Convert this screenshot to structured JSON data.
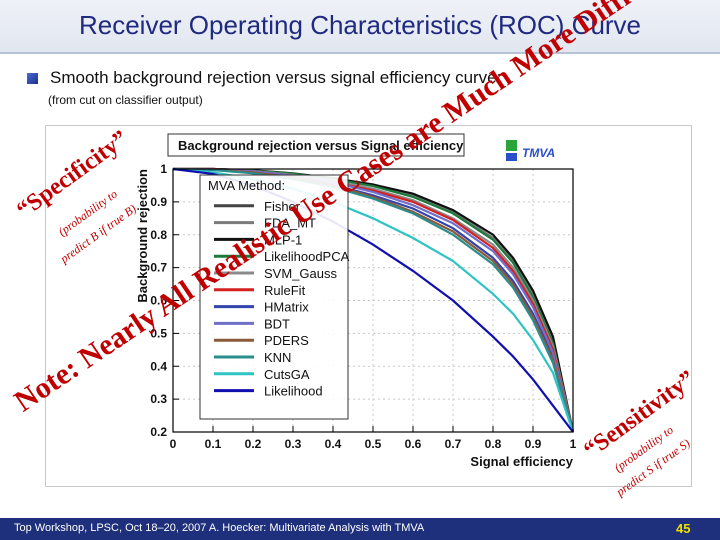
{
  "slide": {
    "title": "Receiver Operating Characteristics (ROC) Curve",
    "bullet": "Smooth background rejection versus signal efficiency curve:",
    "sub_note": "(from cut on classifier output)",
    "footer_text": "Top Workshop, LPSC, Oct 18–20, 2007 A. Hoecker: Multivariate Analysis with TMVA",
    "page_number": "45",
    "logo_text": "TMVA"
  },
  "annotations": {
    "diagonal": "Note: Nearly All Realistic Use Cases are Much More Difficult Than This One",
    "specificity_label": "“Specificity”",
    "specificity_sub1": "(probability to",
    "specificity_sub2": "predict B if true B)",
    "sensitivity_label": "“Sensitivity”",
    "sensitivity_sub1": "(probability to",
    "sensitivity_sub2": "predict S if true S)"
  },
  "colors": {
    "annotation": "#c00000",
    "title": "#1f2a80",
    "footer_bg": "#1e2f7c",
    "page_number": "#f0e000"
  },
  "chart_data": {
    "type": "line",
    "title": "Background rejection versus Signal efficiency",
    "xlabel": "Signal efficiency",
    "ylabel": "Background rejection",
    "xlim": [
      0,
      1
    ],
    "ylim": [
      0.2,
      1.0
    ],
    "xticks": [
      "0",
      "0.1",
      "0.2",
      "0.3",
      "0.4",
      "0.5",
      "0.6",
      "0.7",
      "0.8",
      "0.9",
      "1"
    ],
    "yticks": [
      "0.2",
      "0.3",
      "0.4",
      "0.5",
      "0.6",
      "0.7",
      "0.8",
      "0.9",
      "1"
    ],
    "grid": true,
    "legend_title": "MVA Method:",
    "legend_position": "top-left inside",
    "x": [
      0,
      0.1,
      0.2,
      0.3,
      0.4,
      0.5,
      0.6,
      0.7,
      0.8,
      0.85,
      0.9,
      0.95,
      1.0
    ],
    "series": [
      {
        "name": "Fisher",
        "color": "#444444",
        "values": [
          1.0,
          1.0,
          0.995,
          0.985,
          0.97,
          0.95,
          0.92,
          0.87,
          0.79,
          0.72,
          0.62,
          0.48,
          0.2
        ]
      },
      {
        "name": "FDA_MT",
        "color": "#7a7a7a",
        "values": [
          1.0,
          1.0,
          0.995,
          0.985,
          0.97,
          0.95,
          0.92,
          0.87,
          0.79,
          0.72,
          0.62,
          0.48,
          0.2
        ]
      },
      {
        "name": "MLP-1",
        "color": "#111111",
        "values": [
          1.0,
          1.0,
          0.996,
          0.987,
          0.972,
          0.953,
          0.925,
          0.875,
          0.8,
          0.73,
          0.63,
          0.49,
          0.2
        ]
      },
      {
        "name": "LikelihoodPCA",
        "color": "#1b7a3c",
        "values": [
          1.0,
          1.0,
          0.995,
          0.986,
          0.97,
          0.948,
          0.915,
          0.865,
          0.785,
          0.715,
          0.61,
          0.47,
          0.2
        ]
      },
      {
        "name": "SVM_Gauss",
        "color": "#8a8a8a",
        "values": [
          1.0,
          1.0,
          0.994,
          0.982,
          0.965,
          0.94,
          0.905,
          0.85,
          0.77,
          0.7,
          0.6,
          0.46,
          0.2
        ]
      },
      {
        "name": "RuleFit",
        "color": "#d42020",
        "values": [
          1.0,
          1.0,
          0.993,
          0.98,
          0.96,
          0.935,
          0.9,
          0.845,
          0.76,
          0.69,
          0.59,
          0.45,
          0.2
        ]
      },
      {
        "name": "HMatrix",
        "color": "#3344aa",
        "values": [
          1.0,
          0.998,
          0.99,
          0.975,
          0.952,
          0.92,
          0.88,
          0.82,
          0.73,
          0.66,
          0.56,
          0.43,
          0.2
        ]
      },
      {
        "name": "BDT",
        "color": "#7070c8",
        "values": [
          1.0,
          0.999,
          0.993,
          0.98,
          0.96,
          0.93,
          0.89,
          0.835,
          0.75,
          0.68,
          0.58,
          0.44,
          0.2
        ]
      },
      {
        "name": "PDERS",
        "color": "#8a5a3a",
        "values": [
          1.0,
          0.998,
          0.99,
          0.975,
          0.95,
          0.915,
          0.87,
          0.81,
          0.72,
          0.65,
          0.55,
          0.42,
          0.2
        ]
      },
      {
        "name": "KNN",
        "color": "#2a8c8c",
        "values": [
          1.0,
          0.997,
          0.987,
          0.97,
          0.945,
          0.91,
          0.865,
          0.8,
          0.71,
          0.64,
          0.54,
          0.41,
          0.2
        ]
      },
      {
        "name": "CutsGA",
        "color": "#2ec4c4",
        "values": [
          1.0,
          0.99,
          0.97,
          0.94,
          0.9,
          0.85,
          0.79,
          0.72,
          0.62,
          0.56,
          0.48,
          0.38,
          0.2
        ]
      },
      {
        "name": "Likelihood",
        "color": "#1010b0",
        "values": [
          1.0,
          0.985,
          0.95,
          0.9,
          0.84,
          0.77,
          0.69,
          0.6,
          0.49,
          0.43,
          0.36,
          0.28,
          0.2
        ]
      }
    ]
  }
}
